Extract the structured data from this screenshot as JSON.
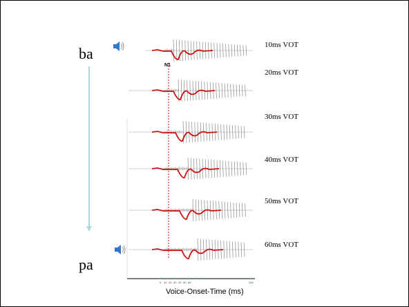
{
  "continuum": {
    "start": "ba",
    "end": "pa"
  },
  "rows": [
    {
      "vot": 10,
      "label": "10ms VOT"
    },
    {
      "vot": 20,
      "label": "20ms VOT"
    },
    {
      "vot": 30,
      "label": "30ms VOT"
    },
    {
      "vot": 40,
      "label": "40ms VOT"
    },
    {
      "vot": 50,
      "label": "50ms VOT"
    },
    {
      "vot": 60,
      "label": "60ms VOT"
    }
  ],
  "component_label": "N1",
  "axis": {
    "title": "Voice-Onset-Time (ms)",
    "ticks": [
      "0",
      "10",
      "20",
      "30",
      "40",
      "50",
      "60",
      "200"
    ]
  },
  "icons": [
    "speaker-icon",
    "speaker-icon"
  ],
  "colors": {
    "erp": "#cc1111",
    "waveform": "#888888",
    "arrow": "#a8d8e0",
    "guide": "#cc0000"
  }
}
